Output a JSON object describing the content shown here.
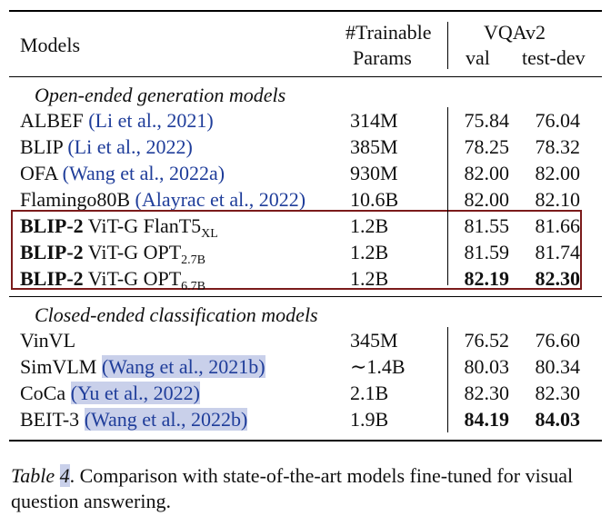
{
  "table": {
    "header": {
      "models": "Models",
      "trainable_line1": "#Trainable",
      "trainable_line2": "Params",
      "vqav2": "VQAv2",
      "val": "val",
      "test_dev": "test-dev"
    },
    "section_open": "Open-ended generation models",
    "section_closed": "Closed-ended classification models",
    "open_rows": [
      {
        "model": "ALBEF",
        "cite": "(Li et al., 2021)",
        "params": "314M",
        "val": "75.84",
        "test": "76.04"
      },
      {
        "model": "BLIP",
        "cite": "(Li et al., 2022)",
        "params": "385M",
        "val": "78.25",
        "test": "78.32"
      },
      {
        "model": "OFA",
        "cite": "(Wang et al., 2022a)",
        "params": "930M",
        "val": "82.00",
        "test": "82.00"
      },
      {
        "model": "Flamingo80B",
        "cite": "(Alayrac et al., 2022)",
        "params": "10.6B",
        "val": "82.00",
        "test": "82.10"
      }
    ],
    "blip_rows": [
      {
        "name": "BLIP-2",
        "rest": "ViT-G FlanT5",
        "sub": "XL",
        "params": "1.2B",
        "val": "81.55",
        "test": "81.66"
      },
      {
        "name": "BLIP-2",
        "rest": "ViT-G OPT",
        "sub": "2.7B",
        "params": "1.2B",
        "val": "81.59",
        "test": "81.74"
      },
      {
        "name": "BLIP-2",
        "rest": "ViT-G OPT",
        "sub": "6.7B",
        "params": "1.2B",
        "val": "82.19",
        "test": "82.30"
      }
    ],
    "closed_rows": [
      {
        "model": "VinVL",
        "cite": "",
        "params": "345M",
        "val": "76.52",
        "test": "76.60"
      },
      {
        "model": "SimVLM",
        "cite": "(Wang et al., 2021b)",
        "params": "~1.4B",
        "val": "80.03",
        "test": "80.34"
      },
      {
        "model": "CoCa",
        "cite": "(Yu et al., 2022)",
        "params": "2.1B",
        "val": "82.30",
        "test": "82.30"
      },
      {
        "model": "BEIT-3",
        "cite": "(Wang et al., 2022b)",
        "params": "1.9B",
        "val": "84.19",
        "test": "84.03"
      }
    ]
  },
  "caption": {
    "label": "Table",
    "number": "4",
    "text": ". Comparison with state-of-the-art models fine-tuned for visual question answering."
  }
}
